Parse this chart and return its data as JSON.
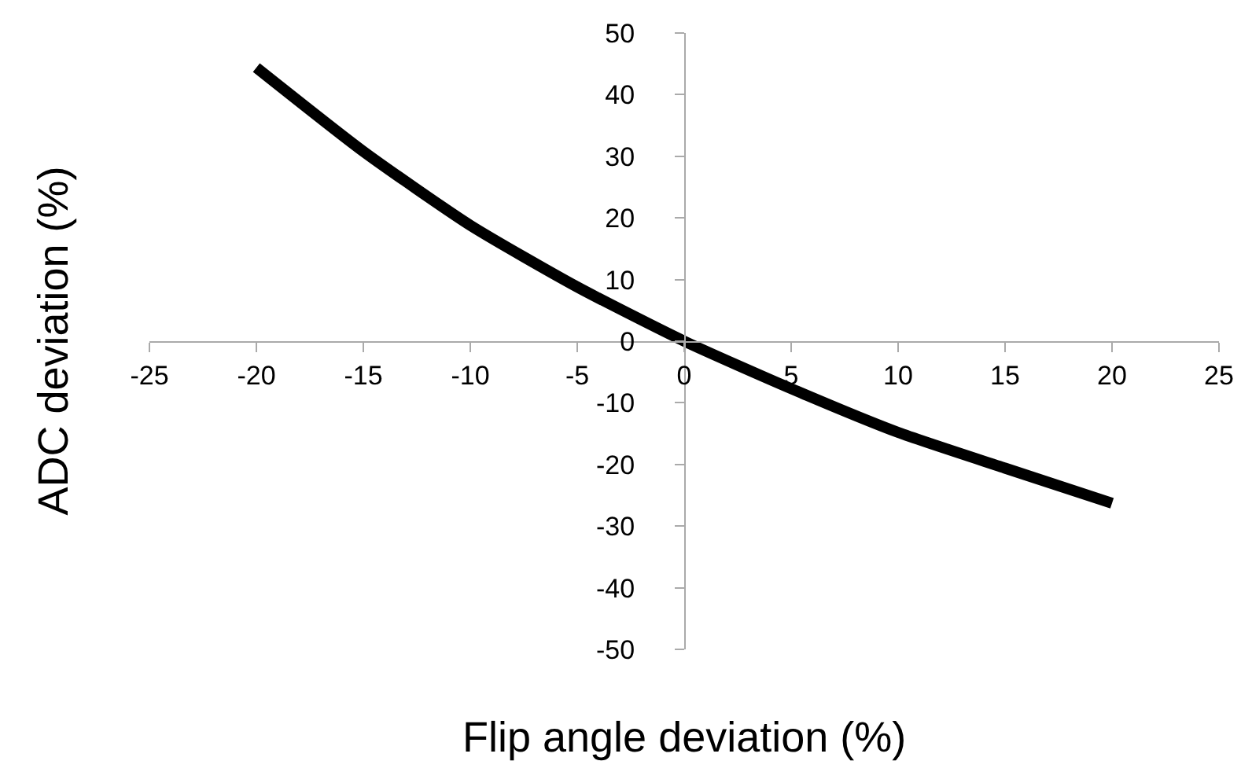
{
  "chart_data": {
    "type": "line",
    "xlabel": "Flip angle deviation (%)",
    "ylabel": "ADC deviation (%)",
    "x": [
      -20,
      -15,
      -10,
      -5,
      0,
      5,
      10,
      15,
      20
    ],
    "series": [
      {
        "color": "#000000",
        "values": [
          44.4,
          30.8,
          18.8,
          8.8,
          0,
          -7.7,
          -14.8,
          -20.6,
          -26.3
        ]
      }
    ],
    "xlim": [
      -25,
      25
    ],
    "xticks": [
      -25,
      -20,
      -15,
      -10,
      -5,
      0,
      5,
      10,
      15,
      20,
      25
    ],
    "ylim": [
      -50,
      50
    ],
    "yticks": [
      -50,
      -40,
      -30,
      -20,
      -10,
      0,
      10,
      20,
      30,
      40,
      50
    ],
    "marker": "none",
    "line_style": "solid"
  }
}
